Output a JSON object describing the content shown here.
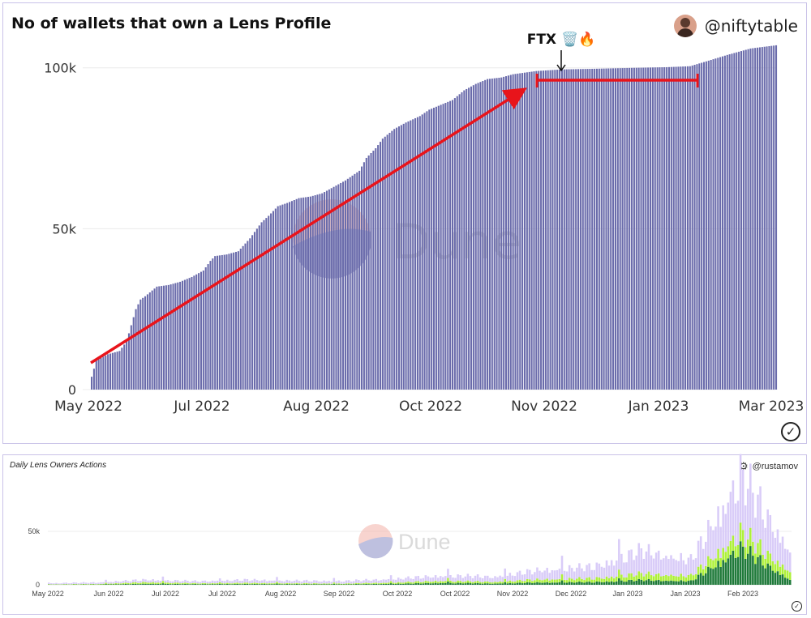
{
  "top_panel": {
    "title": "No of wallets that own a Lens Profile",
    "author": "@niftytable",
    "watermark": "Dune",
    "annotation_label": "FTX 🗑️🔥",
    "bar_color": "#6a6bab",
    "annotation_color": "#e8141b"
  },
  "bottom_panel": {
    "title": "Daily Lens Owners Actions",
    "author": "@rustamov",
    "watermark": "Dune",
    "colors": {
      "light": "#d9ccf8",
      "lime": "#aef03a",
      "dark": "#1f7a3a"
    }
  },
  "chart_data": [
    {
      "type": "bar",
      "title": "No of wallets that own a Lens Profile",
      "x_range": [
        "2022-05-13",
        "2023-03-03"
      ],
      "ylim": [
        0,
        110000
      ],
      "x_ticks": [
        "May 2022",
        "Jul 2022",
        "Aug 2022",
        "Oct 2022",
        "Nov 2022",
        "Jan 2023",
        "Mar 2023"
      ],
      "y_ticks": [
        "0",
        "50k",
        "100k"
      ],
      "grid": true,
      "series": [
        {
          "x": [
            "2022-05-13",
            "2022-05-15",
            "2022-05-20",
            "2022-05-25",
            "2022-05-28",
            "2022-06-01",
            "2022-06-03",
            "2022-06-05",
            "2022-06-10",
            "2022-06-15",
            "2022-06-20",
            "2022-06-25",
            "2022-06-30",
            "2022-07-03",
            "2022-07-05",
            "2022-07-10",
            "2022-07-15",
            "2022-07-20",
            "2022-07-25",
            "2022-07-28",
            "2022-08-01",
            "2022-08-05",
            "2022-08-10",
            "2022-08-15",
            "2022-08-20",
            "2022-08-25",
            "2022-08-30",
            "2022-09-05",
            "2022-09-08",
            "2022-09-12",
            "2022-09-15",
            "2022-09-20",
            "2022-09-25",
            "2022-10-01",
            "2022-10-05",
            "2022-10-10",
            "2022-10-15",
            "2022-10-20",
            "2022-10-25",
            "2022-10-30",
            "2022-11-05",
            "2022-11-10",
            "2022-11-15",
            "2022-11-20",
            "2022-12-01",
            "2022-12-15",
            "2023-01-01",
            "2023-01-15",
            "2023-01-25",
            "2023-02-01",
            "2023-02-10",
            "2023-02-20",
            "2023-03-03"
          ],
          "values": [
            4000,
            9000,
            11000,
            12000,
            15000,
            25000,
            28000,
            29000,
            32000,
            32500,
            33500,
            35000,
            37000,
            40000,
            41500,
            42000,
            43000,
            47000,
            52000,
            54000,
            57000,
            58000,
            59500,
            60000,
            61000,
            63000,
            65000,
            68000,
            72000,
            75000,
            78000,
            81000,
            83000,
            85000,
            87000,
            88500,
            90000,
            93000,
            95000,
            96500,
            97000,
            98000,
            98500,
            99000,
            99500,
            99700,
            100000,
            100200,
            100500,
            102000,
            104000,
            106000,
            107000
          ]
        }
      ],
      "annotations": [
        "FTX 🗑️🔥"
      ]
    },
    {
      "type": "bar",
      "title": "Daily Lens Owners Actions",
      "stacked": true,
      "x_ticks": [
        "May 2022",
        "Jun 2022",
        "Jul 2022",
        "Jul 2022",
        "Aug 2022",
        "Sep 2022",
        "Oct 2022",
        "Oct 2022",
        "Nov 2022",
        "Dec 2022",
        "Jan 2023",
        "Jan 2023",
        "Feb 2023"
      ],
      "y_ticks": [
        "0",
        "50k"
      ],
      "ylim": [
        0,
        100000
      ],
      "series": [
        {
          "values": [
            1000,
            1500,
            2500,
            2000,
            3000,
            2500,
            2500,
            3500,
            5000,
            5000,
            9000,
            11000,
            22000,
            15000,
            55000,
            20000
          ]
        },
        {
          "values": [
            300,
            500,
            1500,
            800,
            1000,
            800,
            700,
            1200,
            2000,
            1500,
            3000,
            3500,
            6000,
            5000,
            15000,
            8000
          ]
        },
        {
          "values": [
            200,
            300,
            900,
            600,
            700,
            600,
            500,
            900,
            1800,
            1200,
            2200,
            2500,
            4500,
            3500,
            35000,
            5000
          ]
        }
      ]
    }
  ]
}
